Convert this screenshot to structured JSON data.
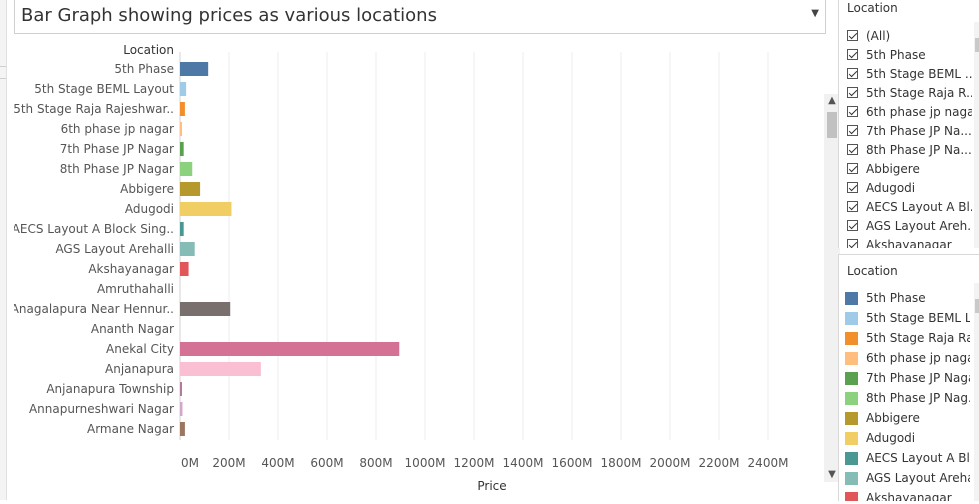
{
  "title": "Bar Graph showing prices as various locations",
  "filter_panel": {
    "title": "Location",
    "items": [
      {
        "label": "(All)"
      },
      {
        "label": "5th Phase"
      },
      {
        "label": "5th Stage BEML ..."
      },
      {
        "label": "5th Stage Raja R..."
      },
      {
        "label": "6th phase jp nagar"
      },
      {
        "label": "7th Phase JP Na..."
      },
      {
        "label": "8th Phase JP Na..."
      },
      {
        "label": "Abbigere"
      },
      {
        "label": "Adugodi"
      },
      {
        "label": "AECS Layout A Bl..."
      },
      {
        "label": "AGS Layout Areh..."
      },
      {
        "label": "Akshayanagar"
      }
    ]
  },
  "legend_panel": {
    "title": "Location",
    "items": [
      {
        "label": "5th Phase",
        "color": "#4e79a7"
      },
      {
        "label": "5th Stage BEML L...",
        "color": "#a0cbe8"
      },
      {
        "label": "5th Stage Raja Ra...",
        "color": "#f28e2b"
      },
      {
        "label": "6th phase jp nagar",
        "color": "#ffbe7d"
      },
      {
        "label": "7th Phase JP Nagar",
        "color": "#59a14f"
      },
      {
        "label": "8th Phase JP Nag...",
        "color": "#8cd17d"
      },
      {
        "label": "Abbigere",
        "color": "#b6992d"
      },
      {
        "label": "Adugodi",
        "color": "#f1ce63"
      },
      {
        "label": "AECS Layout A Bl...",
        "color": "#499894"
      },
      {
        "label": "AGS Layout Areha...",
        "color": "#86bcb6"
      },
      {
        "label": "Akshayanagar",
        "color": "#e15759"
      }
    ]
  },
  "chart_data": {
    "type": "bar",
    "orientation": "horizontal",
    "ylabel": "Location",
    "xlabel": "Price",
    "xlim": [
      0,
      2500000000
    ],
    "x_ticks": [
      0,
      200000000,
      400000000,
      600000000,
      800000000,
      1000000000,
      1200000000,
      1400000000,
      1600000000,
      1800000000,
      2000000000,
      2200000000,
      2400000000
    ],
    "x_tick_labels": [
      "0M",
      "200M",
      "400M",
      "600M",
      "800M",
      "1000M",
      "1200M",
      "1400M",
      "1600M",
      "1800M",
      "2000M",
      "2200M",
      "2400M"
    ],
    "grid": true,
    "categories": [
      {
        "label": "5th Phase",
        "value": 115000000,
        "color": "#4e79a7"
      },
      {
        "label": "5th Stage BEML Layout",
        "value": 25000000,
        "color": "#a0cbe8"
      },
      {
        "label": "5th Stage Raja Rajeshwar..",
        "value": 20000000,
        "color": "#f28e2b"
      },
      {
        "label": "6th phase jp nagar",
        "value": 5000000,
        "color": "#ffbe7d"
      },
      {
        "label": "7th Phase JP Nagar",
        "value": 15000000,
        "color": "#59a14f"
      },
      {
        "label": "8th Phase JP Nagar",
        "value": 50000000,
        "color": "#8cd17d"
      },
      {
        "label": "Abbigere",
        "value": 82000000,
        "color": "#b6992d"
      },
      {
        "label": "Adugodi",
        "value": 210000000,
        "color": "#f1ce63"
      },
      {
        "label": "AECS Layout A Block Sing..",
        "value": 15000000,
        "color": "#499894"
      },
      {
        "label": "AGS Layout Arehalli",
        "value": 60000000,
        "color": "#86bcb6"
      },
      {
        "label": "Akshayanagar",
        "value": 35000000,
        "color": "#e15759"
      },
      {
        "label": "Amruthahalli",
        "value": 0,
        "color": "#ff9d9a"
      },
      {
        "label": "Anagalapura Near Hennur..",
        "value": 205000000,
        "color": "#79706e"
      },
      {
        "label": "Ananth Nagar",
        "value": 0,
        "color": "#bab0ac"
      },
      {
        "label": "Anekal City",
        "value": 895000000,
        "color": "#d37295"
      },
      {
        "label": "Anjanapura",
        "value": 330000000,
        "color": "#fabfd2"
      },
      {
        "label": "Anjanapura Township",
        "value": 5000000,
        "color": "#b07aa1"
      },
      {
        "label": "Annapurneshwari Nagar",
        "value": 10000000,
        "color": "#d4a6c8"
      },
      {
        "label": "Armane Nagar",
        "value": 20000000,
        "color": "#9d7660"
      }
    ]
  }
}
